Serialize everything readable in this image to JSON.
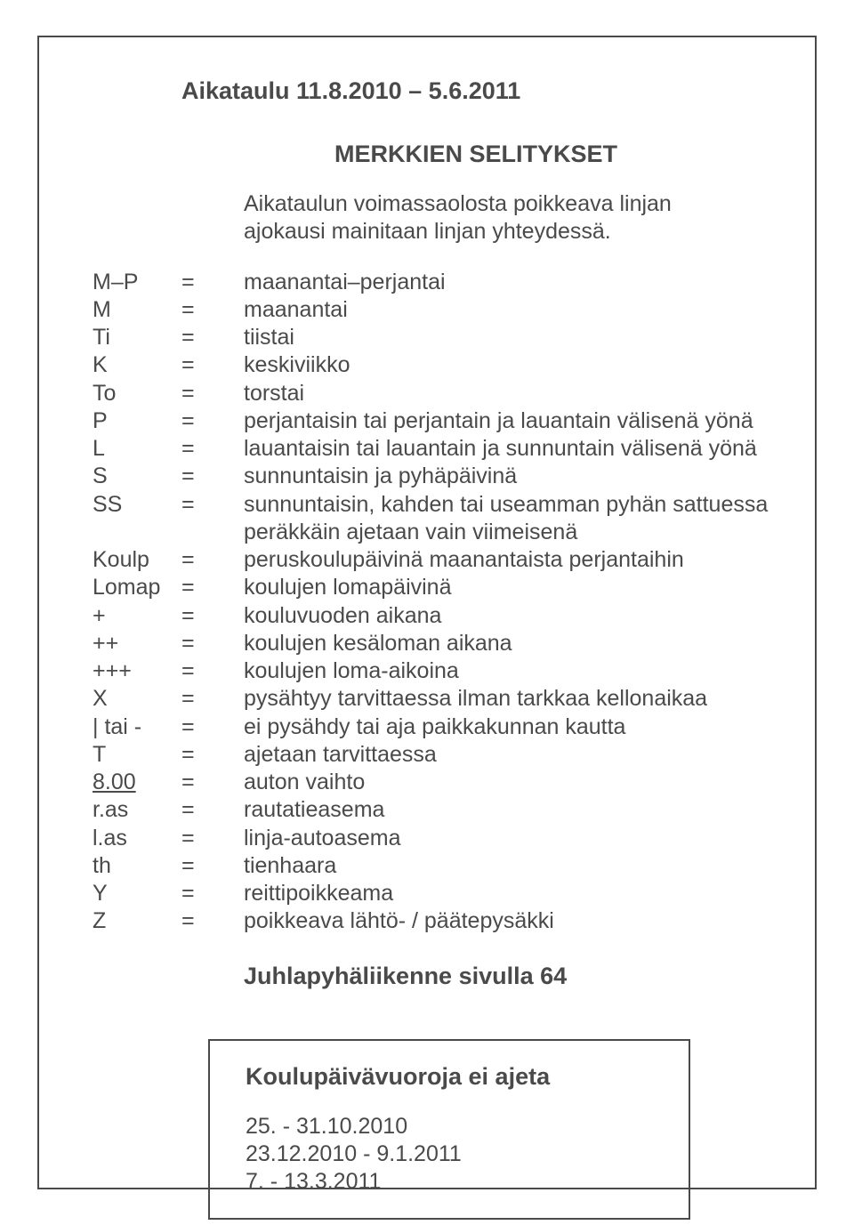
{
  "colors": {
    "text": "#4a4a4a",
    "border": "#4a4a4a",
    "background": "#ffffff"
  },
  "typography": {
    "heading_fontsize_pt": 20,
    "body_fontsize_pt": 19,
    "font_family": "Arial"
  },
  "title": "Aikataulu  11.8.2010 – 5.6.2011",
  "section_heading": "MERKKIEN SELITYKSET",
  "intro": "Aikataulun voimassaolosta poikkeava linjan ajokausi mainitaan linjan yhteydessä.",
  "defs": [
    {
      "sym": "M–P",
      "val": "maanantai–perjantai"
    },
    {
      "sym": "M",
      "val": "maanantai"
    },
    {
      "sym": "Ti",
      "val": "tiistai"
    },
    {
      "sym": "K",
      "val": "keskiviikko"
    },
    {
      "sym": "To",
      "val": "torstai"
    },
    {
      "sym": "P",
      "val": "perjantaisin tai perjantain ja lauantain välisenä yönä"
    },
    {
      "sym": "L",
      "val": "lauantaisin tai lauantain ja sunnuntain välisenä yönä"
    },
    {
      "sym": "S",
      "val": "sunnuntaisin ja pyhäpäivinä"
    },
    {
      "sym": "SS",
      "val": "sunnuntaisin, kahden tai useamman pyhän sattuessa peräkkäin ajetaan vain viimeisenä"
    },
    {
      "sym": "Koulp",
      "val": "peruskoulupäivinä maanantaista perjantaihin"
    },
    {
      "sym": "Lomap",
      "val": "koulujen lomapäivinä"
    },
    {
      "sym": "+",
      "val": "kouluvuoden aikana"
    },
    {
      "sym": "++",
      "val": "koulujen kesäloman aikana"
    },
    {
      "sym": "+++",
      "val": "koulujen loma-aikoina"
    },
    {
      "sym": "X",
      "val": "pysähtyy tarvittaessa ilman tarkkaa kellonaikaa"
    },
    {
      "sym": "| tai -",
      "val": "ei pysähdy tai aja paikkakunnan kautta"
    },
    {
      "sym": "T",
      "val": "ajetaan tarvittaessa"
    },
    {
      "sym": "8.00",
      "val": "auton vaihto",
      "underline": true
    },
    {
      "sym": "r.as",
      "val": "rautatieasema"
    },
    {
      "sym": "l.as",
      "val": "linja-autoasema"
    },
    {
      "sym": "th",
      "val": "tienhaara"
    },
    {
      "sym": "Y",
      "val": "reittipoikkeama"
    },
    {
      "sym": "Z",
      "val": "poikkeava lähtö- / päätepysäkki"
    }
  ],
  "footer_note": "Juhlapyhäliikenne sivulla 64",
  "box": {
    "title": "Koulupäivävuoroja ei ajeta",
    "dates": [
      "25. - 31.10.2010",
      "23.12.2010 - 9.1.2011",
      "7. - 13.3.2011"
    ]
  }
}
